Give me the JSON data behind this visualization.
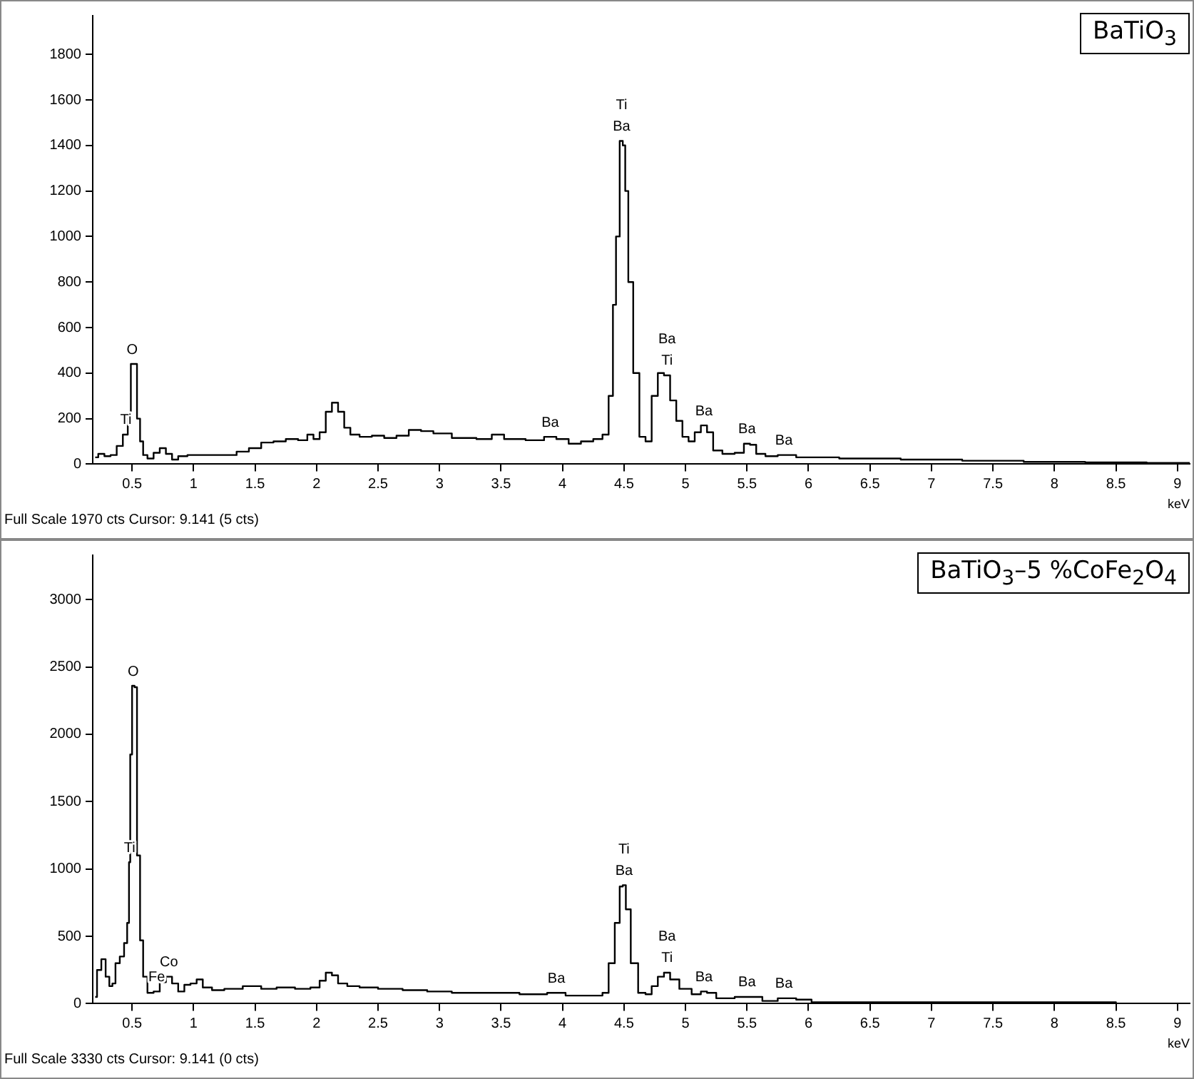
{
  "chart_data": [
    {
      "type": "step",
      "title": "BaTiO$_{3}$",
      "xlabel": "keV",
      "xlim": [
        0.18,
        9.1
      ],
      "xticks": [
        {
          "value": 0.5,
          "label": "0.5"
        },
        1,
        {
          "value": 1.5,
          "label": "1.5"
        },
        2,
        {
          "value": 2.5,
          "label": "2.5"
        },
        3,
        {
          "value": 3.5,
          "label": "3.5"
        },
        4,
        {
          "value": 4.5,
          "label": "4.5"
        },
        5,
        {
          "value": 5.5,
          "label": "5.5"
        },
        6,
        {
          "value": 6.5,
          "label": "6.5"
        },
        7,
        {
          "value": 7.5,
          "label": "7.5"
        },
        8,
        {
          "value": 8.5,
          "label": "8.5"
        },
        9
      ],
      "ylim": [
        0,
        1970
      ],
      "yticks": [
        0,
        200,
        400,
        600,
        800,
        1000,
        1200,
        1400,
        1600,
        1800
      ],
      "grid": false,
      "x": [
        0.2,
        0.25,
        0.3,
        0.35,
        0.4,
        0.45,
        0.48,
        0.5,
        0.53,
        0.55,
        0.58,
        0.6,
        0.65,
        0.7,
        0.75,
        0.8,
        0.85,
        0.9,
        1.0,
        1.2,
        1.3,
        1.4,
        1.5,
        1.6,
        1.7,
        1.8,
        1.9,
        1.95,
        2.0,
        2.05,
        2.1,
        2.15,
        2.2,
        2.25,
        2.3,
        2.4,
        2.5,
        2.6,
        2.7,
        2.8,
        2.9,
        3.0,
        3.2,
        3.4,
        3.45,
        3.6,
        3.8,
        3.9,
        4.0,
        4.1,
        4.2,
        4.3,
        4.35,
        4.4,
        4.42,
        4.45,
        4.48,
        4.5,
        4.52,
        4.55,
        4.6,
        4.65,
        4.7,
        4.75,
        4.8,
        4.85,
        4.9,
        4.95,
        5.0,
        5.05,
        5.1,
        5.15,
        5.2,
        5.25,
        5.35,
        5.45,
        5.5,
        5.55,
        5.6,
        5.7,
        5.8,
        6.0,
        6.5,
        7.0,
        7.5,
        8.0,
        8.5,
        9.0,
        9.1
      ],
      "series": [
        {
          "color": "#000000",
          "values": [
            30,
            45,
            35,
            40,
            80,
            130,
            200,
            440,
            440,
            200,
            100,
            40,
            25,
            50,
            70,
            45,
            20,
            35,
            40,
            40,
            40,
            55,
            70,
            95,
            100,
            110,
            105,
            130,
            110,
            140,
            230,
            270,
            230,
            160,
            130,
            120,
            125,
            115,
            125,
            150,
            145,
            135,
            115,
            110,
            130,
            110,
            105,
            120,
            110,
            90,
            100,
            110,
            130,
            300,
            700,
            1000,
            1420,
            1400,
            1200,
            800,
            400,
            120,
            100,
            300,
            400,
            390,
            280,
            190,
            120,
            100,
            140,
            170,
            140,
            60,
            45,
            50,
            90,
            85,
            45,
            35,
            40,
            30,
            25,
            20,
            15,
            10,
            8,
            5,
            5
          ]
        }
      ],
      "annotations": [
        "Full Scale 1970 cts Cursor: 9.141  (5 cts)",
        {
          "text": "Ti",
          "x": 0.45,
          "y": 130
        },
        {
          "text": "O",
          "x": 0.5,
          "y": 440
        },
        {
          "text": "Ba",
          "x": 3.9,
          "y": 120
        },
        {
          "text": "Ba",
          "x": 4.48,
          "y": 1420
        },
        {
          "text": "Ti",
          "x": 4.48,
          "y": 1420
        },
        {
          "text": "Ti",
          "x": 4.85,
          "y": 390
        },
        {
          "text": "Ba",
          "x": 4.85,
          "y": 390
        },
        {
          "text": "Ba",
          "x": 5.15,
          "y": 170
        },
        {
          "text": "Ba",
          "x": 5.5,
          "y": 90
        },
        {
          "text": "Ba",
          "x": 5.8,
          "y": 40
        }
      ]
    },
    {
      "type": "step",
      "title": "BaTiO$_{3}$–5 %CoFe$_{2}$O$_{4}$",
      "xlabel": "keV",
      "xlim": [
        0.18,
        9.1
      ],
      "xticks": [
        {
          "value": 0.5,
          "label": "0.5"
        },
        1,
        {
          "value": 1.5,
          "label": "1.5"
        },
        2,
        {
          "value": 2.5,
          "label": "2.5"
        },
        3,
        {
          "value": 3.5,
          "label": "3.5"
        },
        4,
        {
          "value": 4.5,
          "label": "4.5"
        },
        5,
        {
          "value": 5.5,
          "label": "5.5"
        },
        6,
        {
          "value": 6.5,
          "label": "6.5"
        },
        7,
        {
          "value": 7.5,
          "label": "7.5"
        },
        8,
        {
          "value": 8.5,
          "label": "8.5"
        },
        9
      ],
      "ylim": [
        0,
        3330
      ],
      "yticks": [
        0,
        500,
        1000,
        1500,
        2000,
        2500,
        3000
      ],
      "grid": false,
      "x": [
        0.2,
        0.23,
        0.27,
        0.3,
        0.33,
        0.35,
        0.38,
        0.42,
        0.45,
        0.47,
        0.48,
        0.49,
        0.51,
        0.53,
        0.55,
        0.58,
        0.6,
        0.65,
        0.7,
        0.75,
        0.8,
        0.85,
        0.9,
        0.95,
        1.0,
        1.05,
        1.1,
        1.2,
        1.3,
        1.5,
        1.6,
        1.75,
        1.9,
        2.0,
        2.05,
        2.1,
        2.15,
        2.2,
        2.3,
        2.4,
        2.6,
        2.8,
        3.0,
        3.2,
        3.5,
        3.8,
        3.95,
        4.1,
        4.3,
        4.35,
        4.4,
        4.45,
        4.48,
        4.5,
        4.53,
        4.58,
        4.65,
        4.7,
        4.75,
        4.8,
        4.85,
        4.9,
        5.0,
        5.1,
        5.15,
        5.2,
        5.3,
        5.5,
        5.55,
        5.7,
        5.8,
        6.0,
        6.05,
        7.0,
        8.0,
        9.0,
        9.1
      ],
      "series": [
        {
          "color": "#000000",
          "values": [
            50,
            250,
            330,
            200,
            130,
            150,
            300,
            350,
            450,
            600,
            1050,
            1850,
            2360,
            2350,
            1100,
            470,
            200,
            80,
            90,
            160,
            200,
            150,
            90,
            140,
            150,
            180,
            120,
            100,
            110,
            130,
            110,
            120,
            110,
            120,
            170,
            230,
            210,
            150,
            130,
            120,
            110,
            100,
            90,
            80,
            80,
            70,
            80,
            60,
            60,
            80,
            300,
            600,
            870,
            880,
            700,
            300,
            80,
            70,
            130,
            200,
            230,
            180,
            110,
            70,
            90,
            80,
            40,
            50,
            50,
            20,
            40,
            30,
            10,
            10,
            10,
            0,
            0
          ]
        }
      ],
      "annotations": [
        "Full Scale 3330 cts Cursor: 9.141  (0 cts)",
        {
          "text": "O",
          "x": 0.51,
          "y": 2360
        },
        {
          "text": "Ti",
          "x": 0.48,
          "y": 1050
        },
        {
          "text": "Fe",
          "x": 0.7,
          "y": 90
        },
        {
          "text": "Co",
          "x": 0.8,
          "y": 200
        },
        {
          "text": "Ba",
          "x": 3.95,
          "y": 80
        },
        {
          "text": "Ba",
          "x": 4.5,
          "y": 880
        },
        {
          "text": "Ti",
          "x": 4.5,
          "y": 880
        },
        {
          "text": "Ti",
          "x": 4.85,
          "y": 230
        },
        {
          "text": "Ba",
          "x": 4.85,
          "y": 230
        },
        {
          "text": "Ba",
          "x": 5.15,
          "y": 90
        },
        {
          "text": "Ba",
          "x": 5.5,
          "y": 50
        },
        {
          "text": "Ba",
          "x": 5.8,
          "y": 40
        }
      ]
    }
  ]
}
